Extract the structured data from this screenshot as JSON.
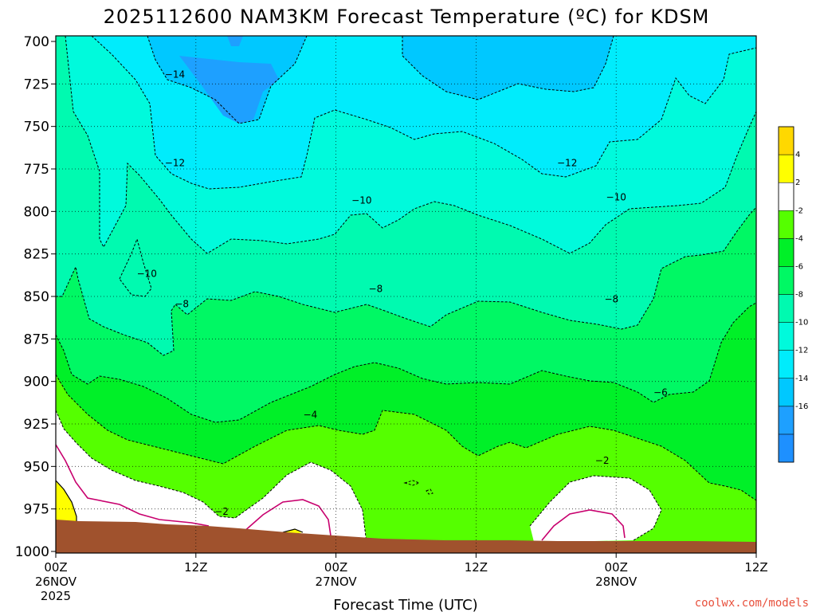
{
  "chart_data": {
    "type": "heatmap",
    "title": "2025112600 NAM3KM Forecast Temperature (ºC) for KDSM",
    "xlabel": "Forecast Time (UTC)",
    "ylabel": "",
    "x_range_hours": [
      0,
      60
    ],
    "y_range_hpa": [
      700,
      1000
    ],
    "y_scale": "linear-inverted",
    "grid": true,
    "x_ticks": [
      {
        "hours": 0,
        "line1": "00Z",
        "line2": "26NOV",
        "line3": "2025"
      },
      {
        "hours": 12,
        "line1": "12Z",
        "line2": "",
        "line3": ""
      },
      {
        "hours": 24,
        "line1": "00Z",
        "line2": "27NOV",
        "line3": ""
      },
      {
        "hours": 36,
        "line1": "12Z",
        "line2": "",
        "line3": ""
      },
      {
        "hours": 48,
        "line1": "00Z",
        "line2": "28NOV",
        "line3": ""
      },
      {
        "hours": 60,
        "line1": "12Z",
        "line2": "",
        "line3": ""
      }
    ],
    "y_ticks": [
      700,
      725,
      750,
      775,
      800,
      825,
      850,
      875,
      900,
      925,
      950,
      975,
      1000
    ],
    "colorbar": {
      "boundaries": [
        -18,
        -16,
        -14,
        -12,
        -10,
        -8,
        -6,
        -4,
        -2,
        2,
        4,
        6
      ],
      "colors": [
        "#1e90ff",
        "#1ea0ff",
        "#00c8ff",
        "#00ecfc",
        "#00fadc",
        "#00fab0",
        "#00f864",
        "#00f028",
        "#55ff00",
        "#ffffff",
        "#ffff00",
        "#ffd800"
      ],
      "labels": [
        "4",
        "2",
        "-2",
        "-4",
        "-6",
        "-8",
        "-10",
        "-12",
        "-14",
        "-16"
      ]
    },
    "contour_labels": [
      {
        "text": "−14",
        "hours": 10.2,
        "hpa": 720
      },
      {
        "text": "−12",
        "hours": 10.2,
        "hpa": 772
      },
      {
        "text": "−12",
        "hours": 43.8,
        "hpa": 772
      },
      {
        "text": "−10",
        "hours": 26.2,
        "hpa": 794
      },
      {
        "text": "−10",
        "hours": 48.0,
        "hpa": 792
      },
      {
        "text": "−10",
        "hours": 7.8,
        "hpa": 837
      },
      {
        "text": "−8",
        "hours": 10.8,
        "hpa": 855
      },
      {
        "text": "−8",
        "hours": 27.4,
        "hpa": 846
      },
      {
        "text": "−8",
        "hours": 47.6,
        "hpa": 852
      },
      {
        "text": "−6",
        "hours": 51.8,
        "hpa": 907
      },
      {
        "text": "−4",
        "hours": 21.8,
        "hpa": 920
      },
      {
        "text": "−2",
        "hours": 14.2,
        "hpa": 977
      },
      {
        "text": "−2",
        "hours": 46.8,
        "hpa": 947
      }
    ],
    "terrain_color": "#a0522d",
    "freezing_line_color": "#c8006e"
  },
  "credit": "coolwx.com/models",
  "credit_color": "#e8503c"
}
